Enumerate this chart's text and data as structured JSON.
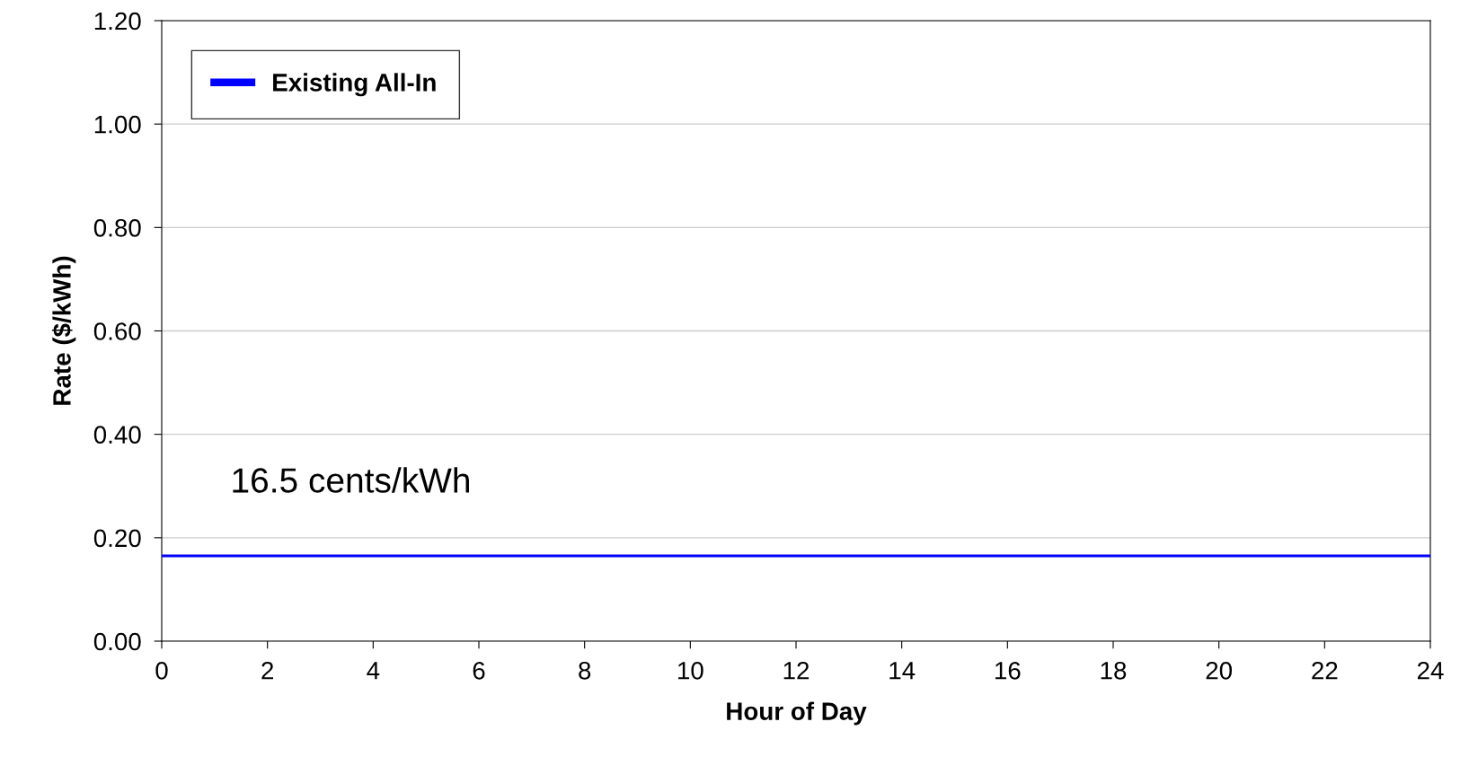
{
  "chart_data": {
    "type": "line",
    "xlabel": "Hour of Day",
    "ylabel": "Rate ($/kWh)",
    "x": [
      0,
      24
    ],
    "series": [
      {
        "name": "Existing All-In",
        "color": "#0000ff",
        "values": [
          0.165,
          0.165
        ]
      }
    ],
    "annotations": [
      {
        "text": "16.5 cents/kWh",
        "x": 1.3,
        "y": 0.165
      }
    ],
    "xlim": [
      0,
      24
    ],
    "xticks": [
      0,
      2,
      4,
      6,
      8,
      10,
      12,
      14,
      16,
      18,
      20,
      22,
      24
    ],
    "ylim": [
      0,
      1.2
    ],
    "yticks": [
      {
        "value": 0,
        "label": "0.00"
      },
      {
        "value": 0.2,
        "label": "0.20"
      },
      {
        "value": 0.4,
        "label": "0.40"
      },
      {
        "value": 0.6,
        "label": "0.60"
      },
      {
        "value": 0.8,
        "label": "0.80"
      },
      {
        "value": 1.0,
        "label": "1.00"
      },
      {
        "value": 1.2,
        "label": "1.20"
      }
    ],
    "grid": "y",
    "legend": "top left",
    "marker": "none",
    "line_style": "solid"
  }
}
